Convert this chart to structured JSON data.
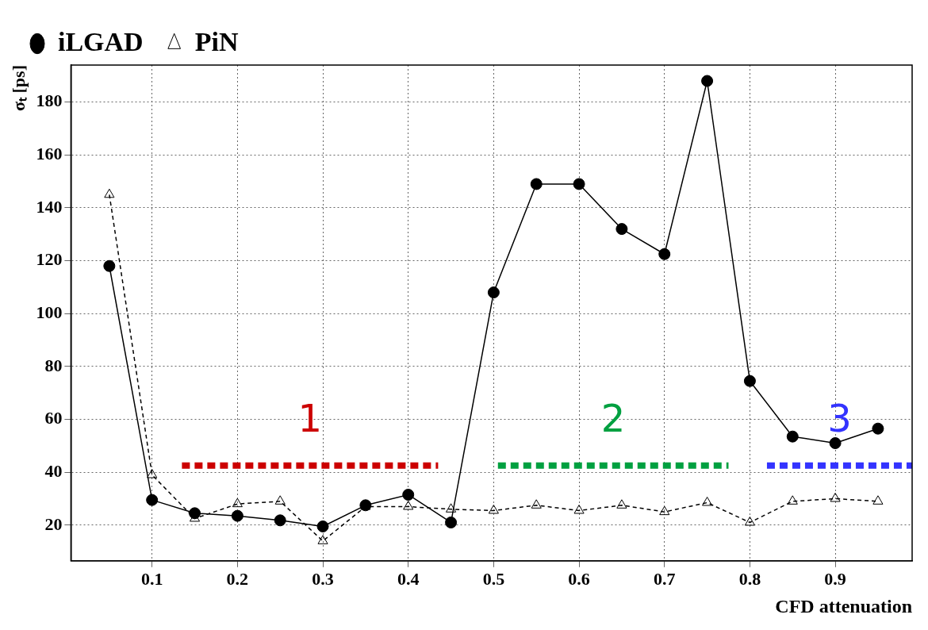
{
  "chart_data": {
    "type": "line",
    "xlabel": "CFD attenuation",
    "ylabel": "σₜ [ps]",
    "x": [
      0.05,
      0.1,
      0.15,
      0.2,
      0.25,
      0.3,
      0.35,
      0.4,
      0.45,
      0.5,
      0.55,
      0.6,
      0.65,
      0.7,
      0.75,
      0.8,
      0.85,
      0.9,
      0.95
    ],
    "series": [
      {
        "name": "iLGAD",
        "color": "#000000",
        "marker": "circle",
        "line_style": "solid",
        "values": [
          118,
          29.5,
          24.5,
          23.5,
          21.8,
          19.5,
          27.5,
          31.5,
          21,
          108,
          149,
          149,
          132,
          122.5,
          188,
          74.5,
          53.5,
          51,
          56.5
        ]
      },
      {
        "name": "PiN",
        "color": "#000000",
        "marker": "triangle",
        "line_style": "dashed",
        "values": [
          145,
          39,
          22.5,
          28,
          29,
          14,
          27,
          27,
          26,
          25.5,
          27.5,
          25.5,
          27.5,
          25,
          28.5,
          21,
          29,
          30,
          29
        ]
      },
      {
        "color": "#cc0000",
        "marker": "none",
        "line_style": "dotted",
        "x": [
          0.135,
          0.435
        ],
        "values": [
          42.5,
          42.5
        ]
      },
      {
        "color": "#00a040",
        "marker": "none",
        "line_style": "dotted",
        "x": [
          0.505,
          0.775
        ],
        "values": [
          42.5,
          42.5
        ]
      },
      {
        "color": "#3333ff",
        "marker": "none",
        "line_style": "dotted",
        "x": [
          0.82,
          0.99
        ],
        "values": [
          42.5,
          42.5
        ]
      }
    ],
    "annotations": [
      "1",
      "2",
      "3"
    ],
    "xlim": [
      0.005,
      0.99
    ],
    "xticks": [
      0.1,
      0.2,
      0.3,
      0.4,
      0.5,
      0.6,
      0.7,
      0.8,
      0.9
    ],
    "ylim": [
      6.5,
      194
    ],
    "yticks": [
      20,
      40,
      60,
      80,
      100,
      120,
      140,
      160,
      180
    ],
    "grid": true,
    "legend": "top left"
  }
}
